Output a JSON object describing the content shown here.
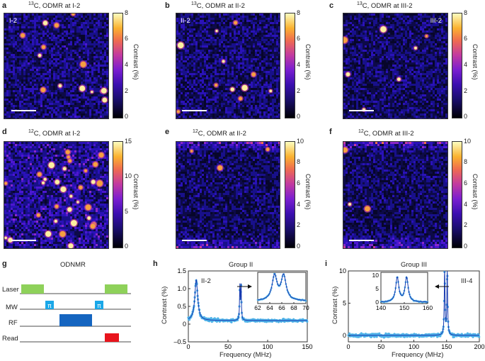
{
  "panels": {
    "a": {
      "letter": "a",
      "title_sup": "13",
      "title": "C, ODMR at I-2",
      "inset": "I-2"
    },
    "b": {
      "letter": "b",
      "title_sup": "13",
      "title": "C, ODMR at II-2",
      "inset": "II-2"
    },
    "c": {
      "letter": "c",
      "title_sup": "13",
      "title": "C, ODMR at III-2",
      "inset": "III-2"
    },
    "d": {
      "letter": "d",
      "title_sup": "12",
      "title": "C, ODMR at I-2",
      "inset": ""
    },
    "e": {
      "letter": "e",
      "title_sup": "12",
      "title": "C, ODMR at II-2",
      "inset": ""
    },
    "f": {
      "letter": "f",
      "title_sup": "12",
      "title": "C, ODMR at III-2",
      "inset": ""
    }
  },
  "colorbars": {
    "label": "Contrast (%)",
    "ticks_8": [
      "8",
      "6",
      "4",
      "2",
      "0"
    ],
    "ticks_15": [
      "15",
      "10",
      "5",
      "0"
    ],
    "ticks_10": [
      "10",
      "8",
      "6",
      "4",
      "2",
      "0"
    ]
  },
  "panel_g": {
    "letter": "g",
    "title": "ODNMR",
    "rows": [
      "Laser",
      "MW",
      "RF",
      "Read"
    ],
    "pi": "π",
    "colors": {
      "laser": "#8ed15a",
      "mw": "#1aa7e8",
      "rf": "#1565c0",
      "read": "#e8141c"
    }
  },
  "panel_h": {
    "letter": "h",
    "title": "Group II",
    "inset_label": "II-2",
    "xlabel": "Frequency (MHz)",
    "ylabel": "Contrast (%)",
    "xticks": [
      "0",
      "50",
      "100",
      "150"
    ],
    "yticks": [
      "1.5",
      "1.0",
      "0.5",
      "0",
      "–0.5"
    ],
    "inset_xticks": [
      "62",
      "64",
      "66",
      "68",
      "70"
    ]
  },
  "panel_i": {
    "letter": "i",
    "title": "Group III",
    "inset_label": "III-4",
    "xlabel": "Frequency (MHz)",
    "ylabel": "Contrast (%)",
    "xticks": [
      "0",
      "50",
      "100",
      "150",
      "200"
    ],
    "yticks": [
      "10",
      "5",
      "0"
    ],
    "inset_xticks": [
      "140",
      "150",
      "160"
    ],
    "inset_yticks": [
      "10",
      "5",
      "0"
    ]
  },
  "chart_data": [
    {
      "type": "scatter",
      "title": "Group II",
      "xlabel": "Frequency (MHz)",
      "ylabel": "Contrast (%)",
      "xlim": [
        0,
        150
      ],
      "ylim": [
        -0.5,
        1.5
      ],
      "peaks_mhz": [
        10,
        65,
        66.5
      ],
      "baseline": 0.1,
      "inset": {
        "xlim": [
          62,
          70
        ],
        "peaks_mhz": [
          64.8,
          66.3
        ]
      }
    },
    {
      "type": "scatter",
      "title": "Group III",
      "xlabel": "Frequency (MHz)",
      "ylabel": "Contrast (%)",
      "xlim": [
        0,
        200
      ],
      "ylim": [
        -1,
        10
      ],
      "peaks_mhz": [
        147,
        151
      ],
      "baseline": 0,
      "inset": {
        "xlim": [
          140,
          160
        ],
        "peaks_mhz": [
          147,
          151
        ]
      }
    }
  ]
}
